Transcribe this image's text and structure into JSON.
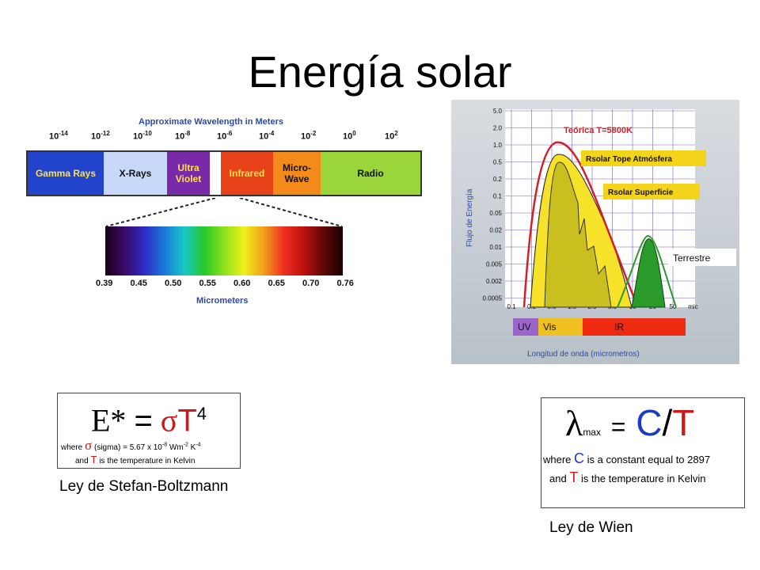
{
  "title": "Energía solar",
  "spectrum": {
    "header": "Approximate Wavelength in Meters",
    "powers": [
      "-14",
      "-12",
      "-10",
      "-8",
      "-6",
      "-4",
      "-2",
      "0",
      "2"
    ],
    "power_base": "10",
    "bands": [
      {
        "label": "Gamma Rays",
        "color": "#2244cc",
        "text": "#ffe14d"
      },
      {
        "label": "X-Rays",
        "color": "#c8d8f8",
        "text": "#111111"
      },
      {
        "label": "Ultra Violet",
        "color": "#7a2aa8",
        "text": "#ffe14d"
      },
      {
        "label": "",
        "color": "#ffffff",
        "text": "#111111"
      },
      {
        "label": "Infrared",
        "color": "#e8421b",
        "text": "#ffe14d"
      },
      {
        "label": "Micro-Wave",
        "color": "#f48a1a",
        "text": "#111111"
      },
      {
        "label": "Radio",
        "color": "#9ad63a",
        "text": "#111111"
      }
    ],
    "ticks": [
      "0.39",
      "0.45",
      "0.50",
      "0.55",
      "0.60",
      "0.65",
      "0.70",
      "0.76"
    ],
    "micrometers_label": "Micrometers"
  },
  "energy_chart": {
    "ylabel": "Flujo de Energía",
    "y_ticks": [
      "5.0",
      "2.0",
      "1.0",
      "0.5",
      "0.2",
      "0.1",
      "0.05",
      "0.02",
      "0.01",
      "0.005",
      "0.002",
      "0.0005"
    ],
    "x_ticks": [
      "0.1",
      "0.2",
      "0.5",
      "1.0",
      "2.0",
      "5.0",
      "10",
      "20",
      "50",
      "mic"
    ],
    "theory_label": "Teórica T=5800K",
    "top_label": "Rsolar Tope Atmósfera",
    "surface_label": "Rsolar Superficie",
    "terrestre_label": "Terrestre",
    "bands": [
      {
        "label": "UV",
        "color": "#9a66cc"
      },
      {
        "label": "Vis",
        "color": "#f0c020"
      },
      {
        "label": "IR",
        "color": "#ee2a10"
      }
    ],
    "xlabel": "Longitud de onda (micrometros)"
  },
  "stefan": {
    "lhs": "E*",
    "eq": "=",
    "sigma": "σ",
    "t": "T",
    "exp": "4",
    "where": "where",
    "sigma_desc": "(sigma) = 5.67 x 10",
    "sigma_exp": "-8",
    "sigma_units": "Wm",
    "units_exp1": "-2",
    "units_k": "K",
    "units_exp2": "-4",
    "and_text": "and",
    "t_desc": "is the temperature in Kelvin",
    "caption": "Ley de Stefan-Boltzmann"
  },
  "wien": {
    "lambda": "λ",
    "max": "max",
    "eq": "=",
    "c": "C",
    "slash": "/",
    "t": "T",
    "where": "where",
    "c_desc": "is a constant equal to 2897",
    "and_text": "and",
    "t_desc": "is the temperature in Kelvin",
    "caption": "Ley de Wien"
  }
}
